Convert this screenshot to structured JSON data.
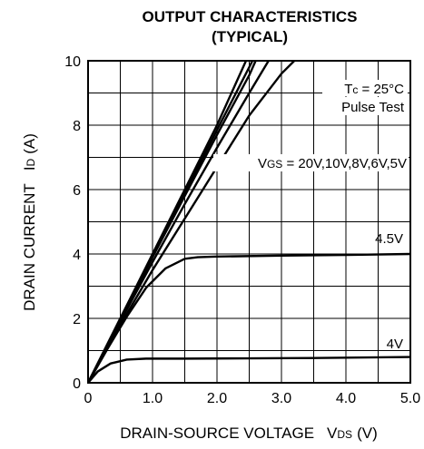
{
  "chart_data": {
    "type": "line",
    "title": "OUTPUT CHARACTERISTICS",
    "subtitle": "(TYPICAL)",
    "xlabel": "DRAIN-SOURCE VOLTAGE",
    "xlabel_symbol": "V",
    "xlabel_symbol_sub": "DS",
    "xlabel_unit": "(V)",
    "ylabel": "DRAIN CURRENT",
    "ylabel_symbol": "I",
    "ylabel_symbol_sub": "D",
    "ylabel_unit": "(A)",
    "xlim": [
      0,
      5.0
    ],
    "ylim": [
      0,
      10
    ],
    "xticks": [
      "0",
      "1.0",
      "2.0",
      "3.0",
      "4.0",
      "5.0"
    ],
    "yticks": [
      "0",
      "2",
      "4",
      "6",
      "8",
      "10"
    ],
    "grid": true,
    "annotations": {
      "condition_tc": "Tc = 25°C",
      "condition_pulse": "Pulse Test",
      "vgs_group": "VGS = 20V,10V,8V,6V,5V",
      "label_45": "4.5V",
      "label_4": "4V"
    },
    "series": [
      {
        "name": "20V",
        "label": "",
        "points": [
          [
            0,
            0
          ],
          [
            0.5,
            2.0
          ],
          [
            1.0,
            4.0
          ],
          [
            1.5,
            6.0
          ],
          [
            2.0,
            8.0
          ],
          [
            2.45,
            10.0
          ]
        ]
      },
      {
        "name": "10V",
        "label": "",
        "points": [
          [
            0,
            0
          ],
          [
            0.5,
            2.0
          ],
          [
            1.0,
            3.95
          ],
          [
            1.5,
            5.9
          ],
          [
            2.0,
            7.85
          ],
          [
            2.5,
            9.8
          ],
          [
            2.55,
            10.0
          ]
        ]
      },
      {
        "name": "8V",
        "label": "",
        "points": [
          [
            0,
            0
          ],
          [
            0.5,
            1.95
          ],
          [
            1.0,
            3.9
          ],
          [
            1.5,
            5.8
          ],
          [
            2.0,
            7.7
          ],
          [
            2.5,
            9.55
          ],
          [
            2.6,
            10.0
          ]
        ]
      },
      {
        "name": "6V",
        "label": "",
        "points": [
          [
            0,
            0
          ],
          [
            0.5,
            1.9
          ],
          [
            1.0,
            3.75
          ],
          [
            1.5,
            5.55
          ],
          [
            2.0,
            7.3
          ],
          [
            2.5,
            9.0
          ],
          [
            2.8,
            10.0
          ]
        ]
      },
      {
        "name": "5V",
        "label": "",
        "points": [
          [
            0,
            0
          ],
          [
            0.5,
            1.8
          ],
          [
            1.0,
            3.5
          ],
          [
            1.5,
            5.1
          ],
          [
            2.0,
            6.7
          ],
          [
            2.5,
            8.3
          ],
          [
            3.0,
            9.6
          ],
          [
            3.2,
            10.0
          ]
        ]
      },
      {
        "name": "4.5V",
        "label": "4.5V",
        "points": [
          [
            0,
            0
          ],
          [
            0.3,
            1.05
          ],
          [
            0.6,
            2.05
          ],
          [
            0.9,
            2.95
          ],
          [
            1.2,
            3.55
          ],
          [
            1.5,
            3.85
          ],
          [
            1.7,
            3.9
          ],
          [
            2.0,
            3.92
          ],
          [
            3.0,
            3.95
          ],
          [
            4.0,
            3.97
          ],
          [
            5.0,
            4.0
          ]
        ]
      },
      {
        "name": "4V",
        "label": "4V",
        "points": [
          [
            0,
            0
          ],
          [
            0.15,
            0.35
          ],
          [
            0.35,
            0.6
          ],
          [
            0.6,
            0.72
          ],
          [
            0.9,
            0.75
          ],
          [
            1.5,
            0.75
          ],
          [
            2.5,
            0.76
          ],
          [
            3.5,
            0.77
          ],
          [
            5.0,
            0.8
          ]
        ]
      }
    ]
  }
}
